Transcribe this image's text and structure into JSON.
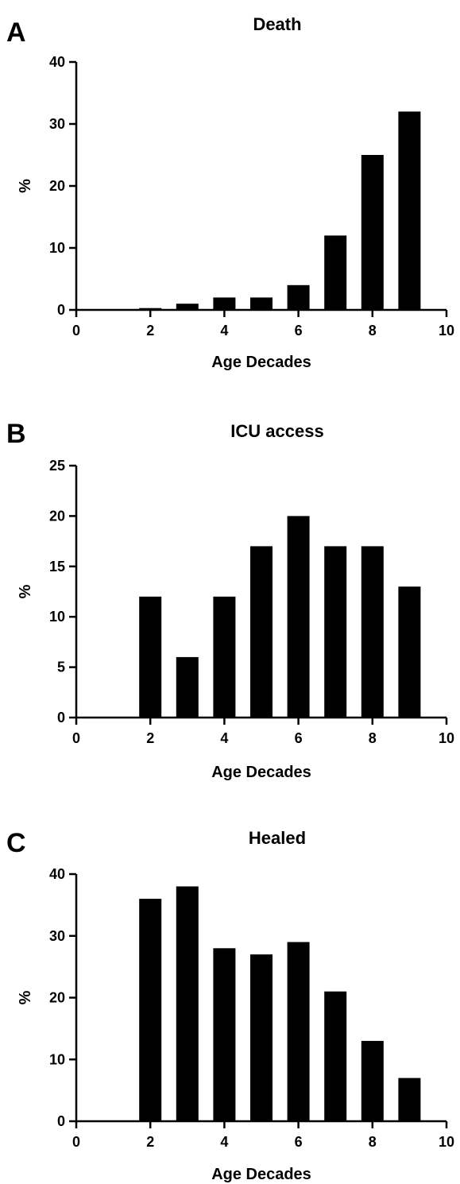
{
  "chart_data": [
    {
      "type": "bar",
      "panel_label": "A",
      "title": "Death",
      "xlabel": "Age Decades",
      "ylabel": "%",
      "xlim": [
        0,
        10
      ],
      "ylim": [
        0,
        40
      ],
      "xticks": [
        0,
        2,
        4,
        6,
        8,
        10
      ],
      "yticks": [
        0,
        10,
        20,
        30,
        40
      ],
      "x": [
        2,
        3,
        4,
        5,
        6,
        7,
        8,
        9
      ],
      "values": [
        0.3,
        1,
        2,
        2,
        4,
        12,
        25,
        32
      ],
      "bar_color": "#000000",
      "grid": false
    },
    {
      "type": "bar",
      "panel_label": "B",
      "title": "ICU access",
      "xlabel": "Age Decades",
      "ylabel": "%",
      "xlim": [
        0,
        10
      ],
      "ylim": [
        0,
        25
      ],
      "xticks": [
        0,
        2,
        4,
        6,
        8,
        10
      ],
      "yticks": [
        0,
        5,
        10,
        15,
        20,
        25
      ],
      "x": [
        2,
        3,
        4,
        5,
        6,
        7,
        8,
        9
      ],
      "values": [
        12,
        6,
        12,
        17,
        20,
        17,
        17,
        13
      ],
      "bar_color": "#000000",
      "grid": false
    },
    {
      "type": "bar",
      "panel_label": "C",
      "title": "Healed",
      "xlabel": "Age Decades",
      "ylabel": "%",
      "xlim": [
        0,
        10
      ],
      "ylim": [
        0,
        40
      ],
      "xticks": [
        0,
        2,
        4,
        6,
        8,
        10
      ],
      "yticks": [
        0,
        10,
        20,
        30,
        40
      ],
      "x": [
        2,
        3,
        4,
        5,
        6,
        7,
        8,
        9
      ],
      "values": [
        36,
        38,
        28,
        27,
        29,
        21,
        13,
        7
      ],
      "bar_color": "#000000",
      "grid": false
    }
  ]
}
